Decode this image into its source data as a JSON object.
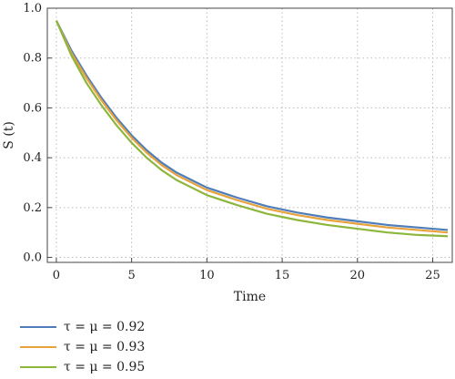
{
  "chart_data": {
    "type": "line",
    "xlabel": "Time",
    "ylabel": "S (t)",
    "xlim": [
      -0.6,
      26.3
    ],
    "ylim": [
      -0.02,
      1.0
    ],
    "x_ticks": [
      0,
      5,
      10,
      15,
      20,
      25
    ],
    "y_ticks": [
      0.0,
      0.2,
      0.4,
      0.6,
      0.8,
      1.0
    ],
    "y_tick_labels": [
      "0.0",
      "0.2",
      "0.4",
      "0.6",
      "0.8",
      "1.0"
    ],
    "grid": "dotted",
    "legend_position": "bottom-left-outside",
    "series": [
      {
        "name": "τ = μ = 0.92",
        "color": "#4f7db9",
        "x": [
          0,
          1,
          2,
          3,
          4,
          5,
          6,
          7,
          8,
          9,
          10,
          12,
          14,
          16,
          18,
          20,
          22,
          24,
          26
        ],
        "y": [
          0.95,
          0.83,
          0.73,
          0.64,
          0.56,
          0.49,
          0.43,
          0.38,
          0.34,
          0.31,
          0.28,
          0.24,
          0.205,
          0.18,
          0.16,
          0.145,
          0.13,
          0.12,
          0.11
        ]
      },
      {
        "name": "τ = μ = 0.93",
        "color": "#e8a23c",
        "x": [
          0,
          1,
          2,
          3,
          4,
          5,
          6,
          7,
          8,
          9,
          10,
          12,
          14,
          16,
          18,
          20,
          22,
          24,
          26
        ],
        "y": [
          0.95,
          0.82,
          0.72,
          0.63,
          0.55,
          0.48,
          0.42,
          0.37,
          0.33,
          0.3,
          0.27,
          0.23,
          0.195,
          0.17,
          0.15,
          0.135,
          0.12,
          0.11,
          0.1
        ]
      },
      {
        "name": "τ = μ = 0.95",
        "color": "#8cb63c",
        "x": [
          0,
          1,
          2,
          3,
          4,
          5,
          6,
          7,
          8,
          9,
          10,
          12,
          14,
          16,
          18,
          20,
          22,
          24,
          26
        ],
        "y": [
          0.95,
          0.81,
          0.7,
          0.61,
          0.53,
          0.46,
          0.4,
          0.35,
          0.31,
          0.28,
          0.25,
          0.21,
          0.175,
          0.15,
          0.13,
          0.115,
          0.1,
          0.09,
          0.085
        ]
      }
    ]
  },
  "legend": {
    "items": [
      {
        "label": "τ = μ = 0.92",
        "color": "#4f7db9"
      },
      {
        "label": "τ = μ = 0.93",
        "color": "#e8a23c"
      },
      {
        "label": "τ = μ = 0.95",
        "color": "#8cb63c"
      }
    ]
  }
}
